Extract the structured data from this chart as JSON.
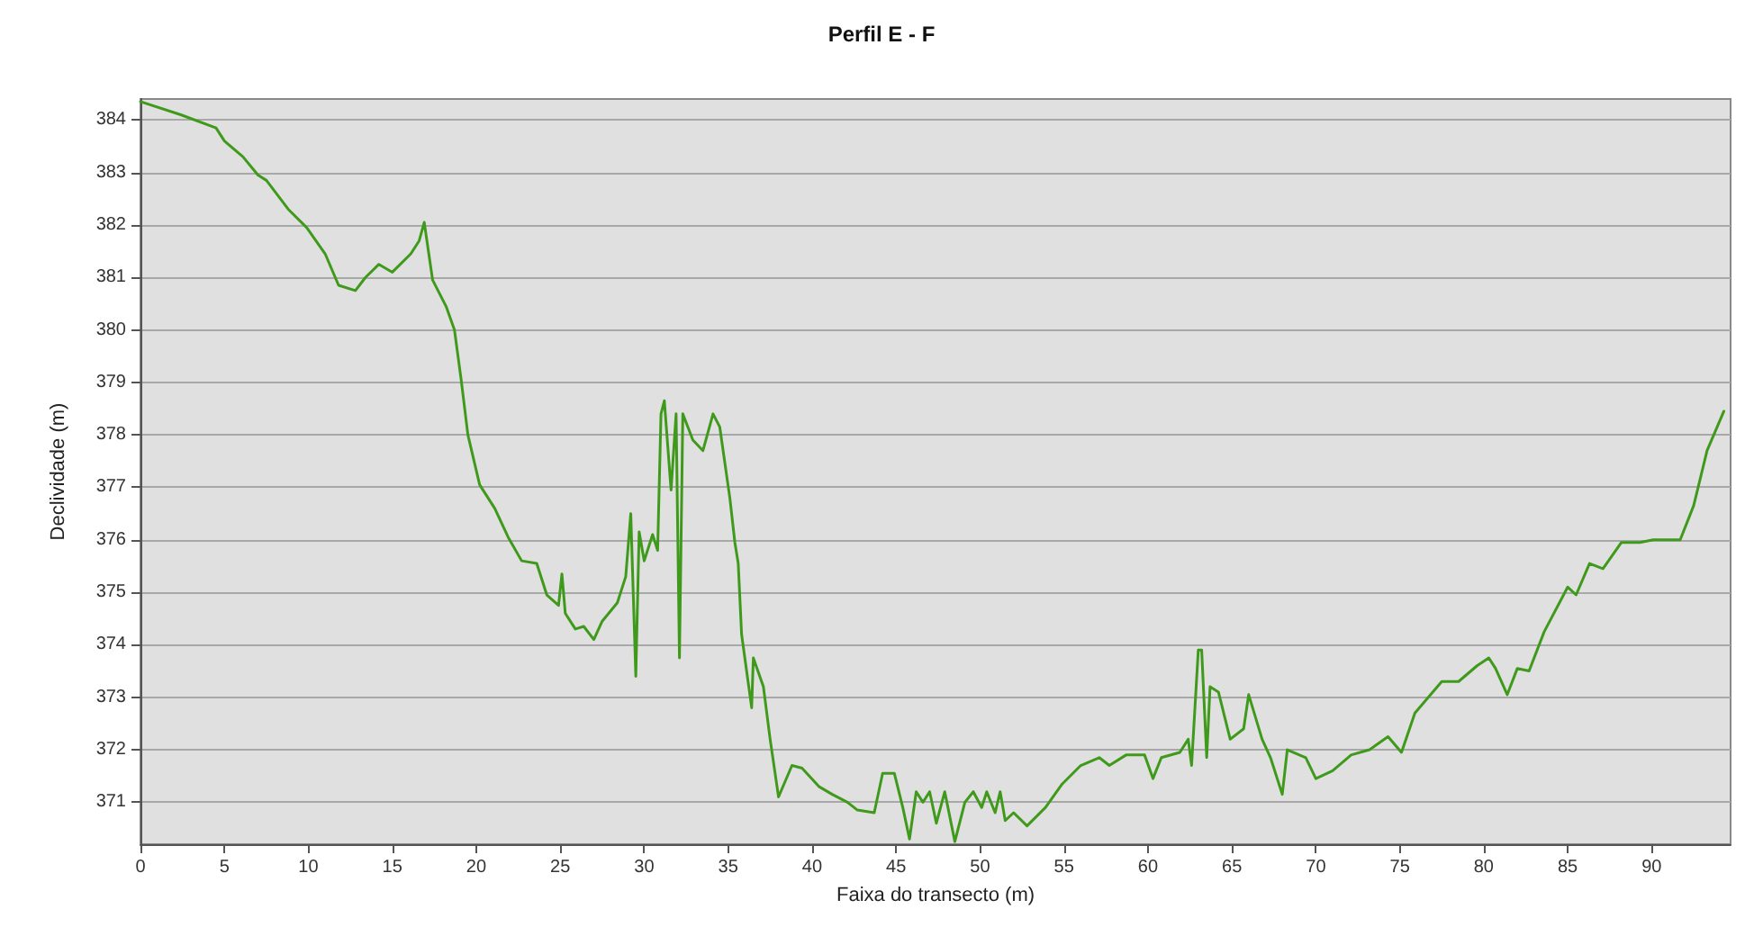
{
  "chart_data": {
    "type": "line",
    "title": "Perfil E - F",
    "xlabel": "Faixa do transecto (m)",
    "ylabel": "Declividade (m)",
    "x": [
      0,
      2.4,
      4.5,
      5,
      6.1,
      7,
      7.5,
      8.8,
      9.9,
      11,
      11.8,
      12.8,
      13.4,
      14.2,
      15,
      16.1,
      16.6,
      16.9,
      17.4,
      18.2,
      18.7,
      19.1,
      19.5,
      20.2,
      21.1,
      21.9,
      22.7,
      23.6,
      24.2,
      24.9,
      25.1,
      25.3,
      25.9,
      26.4,
      27,
      27.5,
      28.4,
      28.9,
      29.2,
      29.5,
      29.7,
      30,
      30.5,
      30.8,
      31,
      31.2,
      31.6,
      31.9,
      32.1,
      32.3,
      32.9,
      33.5,
      34.1,
      34.5,
      35.1,
      35.4,
      35.6,
      35.8,
      36.4,
      36.5,
      37.1,
      37.5,
      38,
      38.8,
      39.4,
      40.4,
      41.2,
      42.1,
      42.7,
      43.7,
      44.2,
      44.9,
      45.4,
      45.8,
      46.2,
      46.6,
      47,
      47.4,
      47.9,
      48.5,
      49.1,
      49.6,
      50.1,
      50.4,
      50.9,
      51.2,
      51.5,
      52,
      52.8,
      53.9,
      54.9,
      56,
      57.1,
      57.7,
      58.7,
      59.8,
      60.3,
      60.8,
      61.9,
      62.4,
      62.6,
      63,
      63.2,
      63.5,
      63.7,
      64.2,
      64.9,
      65.7,
      66,
      66.8,
      67.3,
      68,
      68.3,
      69.4,
      70,
      71,
      72.1,
      73.2,
      74.3,
      75.1,
      75.9,
      77.5,
      78.5,
      79.6,
      80.3,
      80.7,
      81.4,
      82,
      82.7,
      83.6,
      85,
      85.5,
      86.3,
      87.1,
      88.2,
      89.3,
      90.1,
      91.7,
      92.5,
      93.3,
      94.3
    ],
    "series": [
      {
        "color": "#3f9a1c",
        "values": [
          384.35,
          384.1,
          383.85,
          383.6,
          383.3,
          382.95,
          382.85,
          382.3,
          381.95,
          381.45,
          380.85,
          380.75,
          381.0,
          381.25,
          381.1,
          381.45,
          381.7,
          382.05,
          380.95,
          380.45,
          380.0,
          379.05,
          378.0,
          377.05,
          376.6,
          376.05,
          375.6,
          375.55,
          374.95,
          374.75,
          375.35,
          374.6,
          374.3,
          374.35,
          374.1,
          374.45,
          374.8,
          375.3,
          376.5,
          373.4,
          376.15,
          375.6,
          376.1,
          375.8,
          378.4,
          378.65,
          376.95,
          378.4,
          373.75,
          378.4,
          377.9,
          377.7,
          378.4,
          378.15,
          376.8,
          375.95,
          375.55,
          374.2,
          372.8,
          373.75,
          373.2,
          372.2,
          371.1,
          371.7,
          371.65,
          371.3,
          371.15,
          371.0,
          370.85,
          370.8,
          371.55,
          371.55,
          370.9,
          370.3,
          371.2,
          371.0,
          371.2,
          370.6,
          371.2,
          370.25,
          371.0,
          371.2,
          370.9,
          371.2,
          370.8,
          371.2,
          370.65,
          370.8,
          370.55,
          370.9,
          371.35,
          371.7,
          371.85,
          371.7,
          371.9,
          371.9,
          371.45,
          371.85,
          371.95,
          372.2,
          371.7,
          373.9,
          373.9,
          371.85,
          373.2,
          373.1,
          372.2,
          372.4,
          373.05,
          372.2,
          371.85,
          371.15,
          372.0,
          371.85,
          371.45,
          371.6,
          371.9,
          372.0,
          372.25,
          371.95,
          372.7,
          373.3,
          373.3,
          373.6,
          373.75,
          373.55,
          373.05,
          373.55,
          373.5,
          374.25,
          375.1,
          374.95,
          375.55,
          375.45,
          375.95,
          375.95,
          376.0,
          376.0,
          376.65,
          377.7,
          378.45
        ]
      }
    ],
    "xlim": [
      0,
      94.7
    ],
    "ylim": [
      370.2,
      384.4
    ],
    "xticks": [
      0,
      5,
      10,
      15,
      20,
      25,
      30,
      35,
      40,
      45,
      50,
      55,
      60,
      65,
      70,
      75,
      80,
      85,
      90
    ],
    "yticks": [
      371,
      372,
      373,
      374,
      375,
      376,
      377,
      378,
      379,
      380,
      381,
      382,
      383,
      384
    ],
    "grid": "y",
    "marker": "none",
    "line_style": "solid"
  }
}
